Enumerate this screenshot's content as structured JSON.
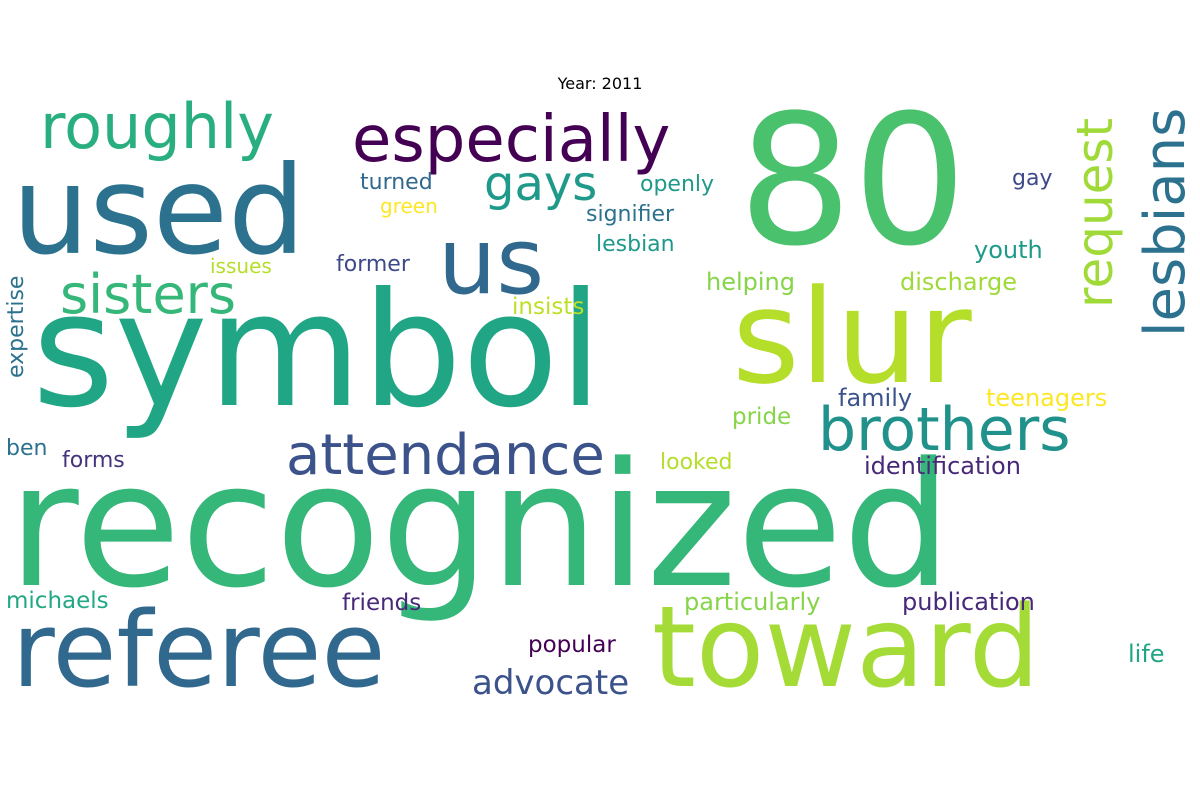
{
  "title": "Year: 2011",
  "words": [
    {
      "text": "recognized",
      "color": "#35b779"
    },
    {
      "text": "symbol",
      "color": "#21a685"
    },
    {
      "text": "80",
      "color": "#4ac16d"
    },
    {
      "text": "used",
      "color": "#2c728e"
    },
    {
      "text": "toward",
      "color": "#a5db36"
    },
    {
      "text": "slur",
      "color": "#b5de2b"
    },
    {
      "text": "referee",
      "color": "#31688e"
    },
    {
      "text": "us",
      "color": "#31688e"
    },
    {
      "text": "especially",
      "color": "#440154"
    },
    {
      "text": "roughly",
      "color": "#29af7f"
    },
    {
      "text": "attendance",
      "color": "#3b528b"
    },
    {
      "text": "brothers",
      "color": "#21918c"
    },
    {
      "text": "sisters",
      "color": "#35b779"
    },
    {
      "text": "lesbians",
      "color": "#2c728e"
    },
    {
      "text": "request",
      "color": "#a0da39"
    },
    {
      "text": "gays",
      "color": "#1f9a8a"
    },
    {
      "text": "advocate",
      "color": "#3b528b"
    },
    {
      "text": "particularly",
      "color": "#86d549"
    },
    {
      "text": "publication",
      "color": "#482878"
    },
    {
      "text": "identification",
      "color": "#482878"
    },
    {
      "text": "discharge",
      "color": "#a0da39"
    },
    {
      "text": "teenagers",
      "color": "#fde725"
    },
    {
      "text": "expertise",
      "color": "#2c728e"
    },
    {
      "text": "michaels",
      "color": "#22a884"
    },
    {
      "text": "friends",
      "color": "#482878"
    },
    {
      "text": "popular",
      "color": "#440154"
    },
    {
      "text": "helping",
      "color": "#86d549"
    },
    {
      "text": "insists",
      "color": "#bddf26"
    },
    {
      "text": "signifier",
      "color": "#2c728e"
    },
    {
      "text": "lesbian",
      "color": "#1f9a8a"
    },
    {
      "text": "openly",
      "color": "#1f9a8a"
    },
    {
      "text": "turned",
      "color": "#31688e"
    },
    {
      "text": "green",
      "color": "#fde725"
    },
    {
      "text": "issues",
      "color": "#b5de2b"
    },
    {
      "text": "former",
      "color": "#3e4989"
    },
    {
      "text": "youth",
      "color": "#1f9a8a"
    },
    {
      "text": "gay",
      "color": "#3e4989"
    },
    {
      "text": "family",
      "color": "#3b528b"
    },
    {
      "text": "pride",
      "color": "#86d549"
    },
    {
      "text": "looked",
      "color": "#b5de2b"
    },
    {
      "text": "forms",
      "color": "#46337e"
    },
    {
      "text": "ben",
      "color": "#2c728e"
    },
    {
      "text": "life",
      "color": "#21a685"
    }
  ]
}
